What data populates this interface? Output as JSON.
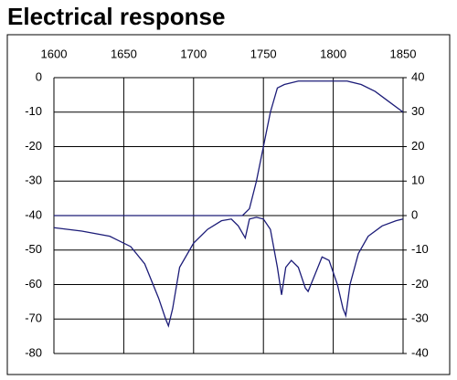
{
  "chart_data": {
    "type": "line",
    "title": "Electrical response",
    "xlim": [
      1600,
      1850
    ],
    "xticks": [
      1600,
      1650,
      1700,
      1750,
      1800,
      1850
    ],
    "ylim": [
      -80,
      0
    ],
    "yticks": [
      0,
      -10,
      -20,
      -30,
      -40,
      -50,
      -60,
      -70,
      -80
    ],
    "y2lim": [
      -40,
      40
    ],
    "y2ticks": [
      40,
      30,
      20,
      10,
      0,
      -10,
      -20,
      -30,
      -40
    ],
    "grid": true,
    "series": [
      {
        "color": "#1c1c78",
        "x": [
          1600,
          1700,
          1735,
          1740,
          1745,
          1750,
          1755,
          1760,
          1765,
          1775,
          1800,
          1810,
          1820,
          1830,
          1840,
          1850
        ],
        "values": [
          -40,
          -40,
          -40,
          -38,
          -30,
          -20,
          -10,
          -3,
          -2,
          -1,
          -1,
          -1,
          -2,
          -4,
          -7,
          -10
        ]
      },
      {
        "color": "#1c1c78",
        "axis": "y2",
        "x": [
          1600,
          1620,
          1640,
          1655,
          1665,
          1675,
          1680,
          1682,
          1685,
          1690,
          1700,
          1710,
          1720,
          1727,
          1732,
          1737,
          1740,
          1745,
          1750,
          1755,
          1760,
          1763,
          1766,
          1770,
          1775,
          1780,
          1782,
          1786,
          1792,
          1797,
          1803,
          1807,
          1809,
          1812,
          1818,
          1825,
          1835,
          1845,
          1850
        ],
        "values": [
          -3.5,
          -4.5,
          -6,
          -9,
          -14,
          -24,
          -30,
          -32,
          -27,
          -15,
          -8,
          -4,
          -1.5,
          -1,
          -3,
          -6.5,
          -1,
          -0.5,
          -1,
          -4,
          -15,
          -23,
          -15,
          -13,
          -15,
          -21,
          -22,
          -18,
          -12,
          -13,
          -20,
          -27,
          -29,
          -20,
          -11,
          -6,
          -3,
          -1.5,
          -1
        ]
      }
    ]
  }
}
